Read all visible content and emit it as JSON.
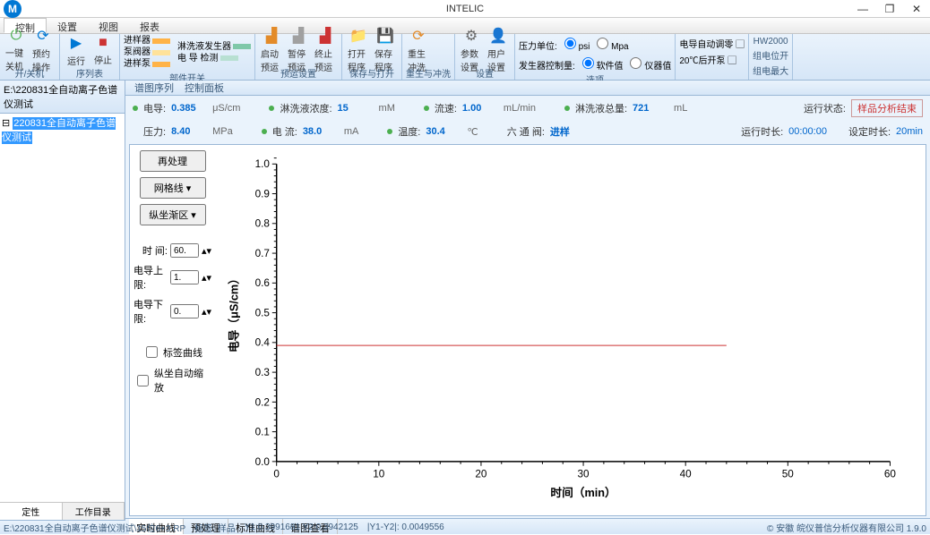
{
  "app_title": "INTELIC",
  "window_controls": {
    "minimize": "—",
    "maximize": "❐",
    "close": "✕"
  },
  "menu": {
    "items": [
      "控制",
      "设置",
      "视图",
      "报表"
    ],
    "active": 0
  },
  "ribbon": {
    "groups": [
      {
        "label": "开/关机",
        "items": [
          {
            "icon": "⏻",
            "color": "#4caf50",
            "text": "一键关机"
          },
          {
            "icon": "⟳",
            "color": "#0078d4",
            "text": "预约操作"
          }
        ]
      },
      {
        "label": "序列表",
        "items": [
          {
            "icon": "▶",
            "color": "#0078d4",
            "text": "运行"
          },
          {
            "icon": "■",
            "color": "#cc3333",
            "text": "停止"
          }
        ]
      },
      {
        "label": "部件开关",
        "stack": [
          {
            "bars": [
              "#ffb347",
              "#ffe29a"
            ],
            "labels": [
              "进样器",
              "泵阀器",
              "进样泵"
            ]
          },
          {
            "bars": [
              "#7fc8a9",
              "#b8e0d2"
            ],
            "labels": [
              "淋洗液发生器",
              "电 导 检测"
            ]
          }
        ]
      },
      {
        "label": "预运设置",
        "items": [
          {
            "icon": "📊",
            "color": "#e38b29",
            "text": "启动预运"
          },
          {
            "icon": "📊",
            "color": "#a0a0a0",
            "text": "暂停预运"
          },
          {
            "icon": "📊",
            "color": "#cc3333",
            "text": "终止预运"
          }
        ]
      },
      {
        "label": "保存与打开",
        "items": [
          {
            "icon": "📁",
            "color": "#e38b29",
            "text": "打开程序"
          },
          {
            "icon": "💾",
            "color": "#0078d4",
            "text": "保存程序"
          }
        ]
      },
      {
        "label": "重生与冲洗",
        "items": [
          {
            "icon": "⟳",
            "color": "#e38b29",
            "text": "重生冲洗"
          }
        ]
      },
      {
        "label": "设置",
        "items": [
          {
            "icon": "⚙",
            "color": "#666",
            "text": "参数设置"
          },
          {
            "icon": "👤",
            "color": "#666",
            "text": "用户设置"
          }
        ]
      },
      {
        "label": "选项",
        "lines": [
          {
            "label": "压力单位:",
            "radio": [
              {
                "label": "psi",
                "checked": true
              },
              {
                "label": "Mpa",
                "checked": false
              }
            ]
          },
          {
            "label": "发生器控制量:",
            "radio": [
              {
                "label": "软件值",
                "checked": true
              },
              {
                "label": "仪器值",
                "checked": false
              }
            ]
          }
        ]
      },
      {
        "label": "",
        "lines2": [
          {
            "label": "电导自动调零",
            "icon": "▢"
          },
          {
            "label": "20℃后开泵",
            "icon": "▢"
          }
        ]
      },
      {
        "label": "",
        "stack2": [
          "HW2000",
          "组电位开",
          "组电最大"
        ]
      }
    ]
  },
  "left": {
    "title": "E:\\220831全自动离子色谱仪测试",
    "tree_root": "⊟",
    "tree_item": "220831全自动离子色谱仪测试",
    "tabs": [
      "定性",
      "工作目录"
    ],
    "active": 0
  },
  "main_tabs": [
    "谱图序列",
    "控制面板"
  ],
  "status1": [
    {
      "label": "电导:",
      "value": "0.385",
      "unit": "μS/cm"
    },
    {
      "label": "淋洗液浓度:",
      "value": "15",
      "unit": "mM"
    },
    {
      "label": "流速:",
      "value": "1.00",
      "unit": "mL/min"
    },
    {
      "label": "淋洗液总量:",
      "value": "721",
      "unit": "mL"
    }
  ],
  "status1_right": {
    "label": "运行状态:",
    "value": "样品分析结束"
  },
  "status2": [
    {
      "label": "压力:",
      "value": "8.40",
      "unit": "MPa"
    },
    {
      "label": "电   流:",
      "value": "38.0",
      "unit": "mA"
    },
    {
      "label": "温度:",
      "value": "30.4",
      "unit": "℃"
    },
    {
      "label": "六 通 阀:",
      "value": "进样",
      "unit": ""
    }
  ],
  "status2_right": [
    {
      "label": "运行时长:",
      "value": "00:00:00"
    },
    {
      "label": "设定时长:",
      "value": "20min"
    }
  ],
  "chartside": {
    "buttons": [
      "再处理",
      "网格线 ▾",
      "纵坐渐区 ▾"
    ],
    "inputs": [
      {
        "label": "时   间:",
        "value": "60."
      },
      {
        "label": "电导上限:",
        "value": "1."
      },
      {
        "label": "电导下限:",
        "value": "0."
      }
    ],
    "checks": [
      {
        "label": "标签曲线",
        "checked": false
      },
      {
        "label": "纵坐自动缩放",
        "checked": false
      }
    ]
  },
  "chart": {
    "xlabel": "时间（min）",
    "ylabel": "电导（μS/cm）",
    "xlim": [
      0,
      60
    ],
    "xtick": 10,
    "ylim": [
      0,
      1.0
    ],
    "ytick": 0.1,
    "line_y": 0.39,
    "line_color": "#cc3333",
    "axis_color": "#000",
    "bg": "#ffffff",
    "label_fontsize": 13
  },
  "bottom_tabs": [
    "实时曲线",
    "预处理",
    "标准曲线",
    "谱图查看"
  ],
  "statusbar": {
    "path": "E:\\220831全自动离子色谱仪测试\\15位6+3.RP",
    "pts": "标签: 样品",
    "y1": "Y1:0.3991681  Y2:0.3942125",
    "y2": "|Y1-Y2|: 0.0049556",
    "right": "© 安徽  皖仪普信分析仪器有限公司  1.9.0"
  }
}
